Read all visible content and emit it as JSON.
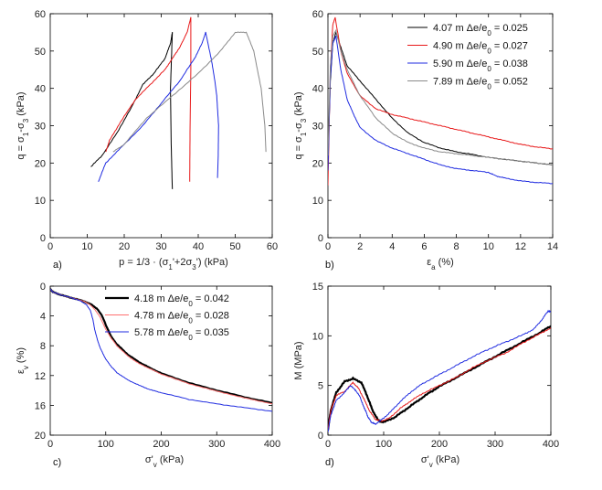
{
  "chart_data": [
    {
      "panel_label": "a)",
      "type": "line",
      "xlabel": "p = 1/3 · (σ1'+2σ3') (kPa)",
      "ylabel": "q = σ1-σ3 (kPa)",
      "xlim": [
        0,
        60
      ],
      "ylim": [
        0,
        60
      ],
      "xticks": [
        0,
        10,
        20,
        30,
        40,
        50,
        60
      ],
      "yticks": [
        0,
        10,
        20,
        30,
        40,
        50,
        60
      ],
      "series": [
        {
          "name": "4.07 m",
          "color": "#000000",
          "x": [
            11,
            14,
            18,
            22,
            25,
            28,
            31,
            32.5,
            33,
            32.5,
            32.7,
            33
          ],
          "y": [
            19,
            22,
            28,
            35,
            41,
            44,
            48,
            52,
            55,
            40,
            25,
            13
          ]
        },
        {
          "name": "4.90 m",
          "color": "#e8191a",
          "x": [
            15,
            16,
            19,
            23,
            27,
            31,
            33,
            35,
            36,
            37,
            37.5,
            38,
            38,
            37.8,
            37.7
          ],
          "y": [
            23,
            26,
            31,
            37,
            41,
            45,
            48,
            51,
            53,
            55,
            57,
            59,
            45,
            30,
            15
          ]
        },
        {
          "name": "5.90 m",
          "color": "#1f2be0",
          "x": [
            13,
            15,
            19,
            25,
            30,
            35,
            39,
            41,
            42,
            43.5,
            44.5,
            45,
            45.5,
            45.4,
            45.2
          ],
          "y": [
            15,
            20,
            24,
            30,
            36,
            42,
            48,
            52,
            55,
            48,
            42,
            38,
            30,
            22,
            16
          ]
        },
        {
          "name": "7.89 m",
          "color": "#8a8a8a",
          "x": [
            17,
            20,
            26,
            33,
            40,
            46,
            50,
            53,
            55,
            57,
            58,
            58.3
          ],
          "y": [
            23,
            25,
            32,
            38,
            44,
            50,
            55,
            55,
            50,
            40,
            30,
            23
          ]
        }
      ]
    },
    {
      "panel_label": "b)",
      "type": "line",
      "xlabel": "εa (%)",
      "ylabel": "q = σ1-σ3 (kPa)",
      "xlim": [
        0,
        14
      ],
      "ylim": [
        0,
        60
      ],
      "xticks": [
        0,
        2,
        4,
        6,
        8,
        10,
        12,
        14
      ],
      "yticks": [
        0,
        10,
        20,
        30,
        40,
        50,
        60
      ],
      "legend_position": "top-right",
      "legend": [
        "4.07 m Δe/e0 = 0.025",
        "4.90 m Δe/e0 = 0.027",
        "5.90 m Δe/e0 = 0.038",
        "7.89 m Δe/e0 = 0.052"
      ],
      "series": [
        {
          "name": "4.07 m Δe/e0 = 0.025",
          "color": "#000000",
          "x": [
            0,
            0.15,
            0.3,
            0.5,
            0.8,
            1.2,
            2,
            3,
            4,
            5,
            6,
            7,
            8,
            9,
            10,
            11,
            12,
            13,
            14
          ],
          "y": [
            20,
            42,
            52,
            55,
            51,
            46,
            42,
            37,
            32,
            28,
            25.5,
            24,
            23,
            22.3,
            21.5,
            21,
            20.5,
            20,
            19.5
          ]
        },
        {
          "name": "4.90 m Δe/e0 = 0.027",
          "color": "#e8191a",
          "x": [
            0,
            0.15,
            0.3,
            0.45,
            0.8,
            1.2,
            2,
            3,
            4,
            5,
            6,
            7,
            8,
            9,
            10,
            11,
            12,
            13,
            14
          ],
          "y": [
            14,
            45,
            57,
            59,
            50,
            44,
            38,
            34.5,
            33,
            32,
            31,
            30,
            29,
            28,
            27,
            26,
            25,
            24.3,
            23.8
          ]
        },
        {
          "name": "5.90 m Δe/e0 = 0.038",
          "color": "#1f2be0",
          "x": [
            0,
            0.15,
            0.3,
            0.5,
            0.8,
            1.2,
            1.6,
            2,
            3,
            4,
            5,
            6,
            7,
            8,
            9,
            10,
            10.5,
            11,
            12,
            13,
            14
          ],
          "y": [
            18,
            43,
            52,
            54,
            45,
            37,
            33,
            29.5,
            26,
            24,
            22.5,
            21,
            19.5,
            18.5,
            18,
            17.5,
            16.5,
            16,
            15.2,
            14.8,
            14.5
          ]
        },
        {
          "name": "7.89 m Δe/e0 = 0.052",
          "color": "#8a8a8a",
          "x": [
            0,
            0.15,
            0.3,
            0.5,
            0.8,
            1.2,
            2,
            3,
            4,
            5,
            6,
            7,
            8,
            9,
            10,
            11,
            12,
            13,
            14
          ],
          "y": [
            22,
            46,
            54,
            55.5,
            50,
            45,
            38,
            32,
            28,
            25.5,
            24,
            23,
            22.5,
            22,
            21.5,
            21,
            20.5,
            20,
            19.5
          ]
        }
      ]
    },
    {
      "panel_label": "c)",
      "type": "line",
      "xlabel": "σ'v (kPa)",
      "ylabel": "εv (%)",
      "xlim": [
        0,
        400
      ],
      "ylim": [
        0,
        20
      ],
      "y_inverted": true,
      "xticks": [
        0,
        100,
        200,
        300,
        400
      ],
      "yticks": [
        0,
        4,
        8,
        12,
        16,
        20
      ],
      "legend_position": "top-right",
      "legend": [
        "4.18 m Δe/e0 = 0.042",
        "4.78 m Δe/e0 = 0.028",
        "5.78 m Δe/e0 = 0.035"
      ],
      "series": [
        {
          "name": "4.18 m Δe/e0 = 0.042",
          "color": "#000000",
          "x": [
            0,
            5,
            20,
            40,
            60,
            75,
            85,
            92,
            97,
            100,
            105,
            110,
            120,
            140,
            160,
            180,
            200,
            250,
            300,
            350,
            400
          ],
          "y": [
            0.4,
            0.8,
            1.2,
            1.6,
            2,
            2.5,
            3.1,
            3.8,
            4.6,
            5.2,
            6,
            6.8,
            7.8,
            9.2,
            10.2,
            11,
            11.7,
            13,
            14,
            14.9,
            15.7
          ]
        },
        {
          "name": "4.78 m Δe/e0 = 0.028",
          "color": "#ff7070",
          "x": [
            0,
            5,
            20,
            40,
            60,
            72,
            82,
            90,
            95,
            100,
            110,
            120,
            140,
            160,
            180,
            200,
            250,
            300,
            350,
            400
          ],
          "y": [
            0.4,
            0.8,
            1.2,
            1.6,
            2,
            2.5,
            3.3,
            4.2,
            5,
            5.8,
            7,
            8,
            9.4,
            10.4,
            11.1,
            11.8,
            13.1,
            14.1,
            15,
            15.8
          ]
        },
        {
          "name": "5.78 m Δe/e0 = 0.035",
          "color": "#1f2be0",
          "x": [
            0,
            5,
            20,
            40,
            55,
            65,
            72,
            77,
            80,
            85,
            90,
            100,
            110,
            120,
            140,
            160,
            180,
            200,
            250,
            300,
            350,
            400
          ],
          "y": [
            0.4,
            0.8,
            1.2,
            1.6,
            2,
            2.5,
            3.2,
            4.5,
            5.8,
            7.2,
            8.3,
            9.8,
            10.8,
            11.6,
            12.6,
            13.3,
            13.9,
            14.3,
            15.2,
            15.8,
            16.3,
            16.8
          ]
        }
      ]
    },
    {
      "panel_label": "d)",
      "type": "line",
      "xlabel": "σ'v (kPa)",
      "ylabel": "M (MPa)",
      "xlim": [
        0,
        400
      ],
      "ylim": [
        0,
        15
      ],
      "xticks": [
        0,
        100,
        200,
        300,
        400
      ],
      "yticks": [
        0,
        5,
        10,
        15
      ],
      "series": [
        {
          "name": "4.18 m",
          "color": "#000000",
          "x": [
            0,
            5,
            15,
            30,
            45,
            60,
            70,
            80,
            90,
            100,
            120,
            140,
            160,
            180,
            200,
            230,
            260,
            290,
            320,
            350,
            380,
            400
          ],
          "y": [
            0.5,
            2.5,
            4.3,
            5.4,
            5.7,
            5.3,
            4,
            2.5,
            1.5,
            1.3,
            1.8,
            2.6,
            3.4,
            4.2,
            4.9,
            5.8,
            6.7,
            7.6,
            8.5,
            9.4,
            10.3,
            11
          ]
        },
        {
          "name": "4.78 m",
          "color": "#e8191a",
          "x": [
            0,
            5,
            15,
            30,
            45,
            55,
            65,
            75,
            85,
            95,
            110,
            130,
            150,
            170,
            200,
            230,
            260,
            290,
            320,
            350,
            380,
            400
          ],
          "y": [
            0.5,
            2.5,
            4,
            4.4,
            5.3,
            4.7,
            3.6,
            2.4,
            1.6,
            1.4,
            1.7,
            2.7,
            3.5,
            4.2,
            5,
            5.8,
            6.8,
            7.6,
            8.3,
            9.3,
            10.2,
            10.8
          ]
        },
        {
          "name": "5.78 m",
          "color": "#1f2be0",
          "x": [
            0,
            5,
            15,
            30,
            40,
            50,
            58,
            63,
            68,
            72,
            78,
            85,
            95,
            110,
            130,
            150,
            170,
            200,
            230,
            260,
            290,
            320,
            350,
            370,
            385,
            395,
            400
          ],
          "y": [
            0.3,
            2,
            3.5,
            4.3,
            5,
            4.5,
            3.8,
            3,
            2.4,
            1.8,
            1.3,
            1.1,
            1.5,
            2.2,
            3.4,
            4.4,
            5.2,
            6.1,
            7,
            7.9,
            8.7,
            9.4,
            10.1,
            10.7,
            11.7,
            12.5,
            12.4
          ]
        }
      ]
    }
  ]
}
